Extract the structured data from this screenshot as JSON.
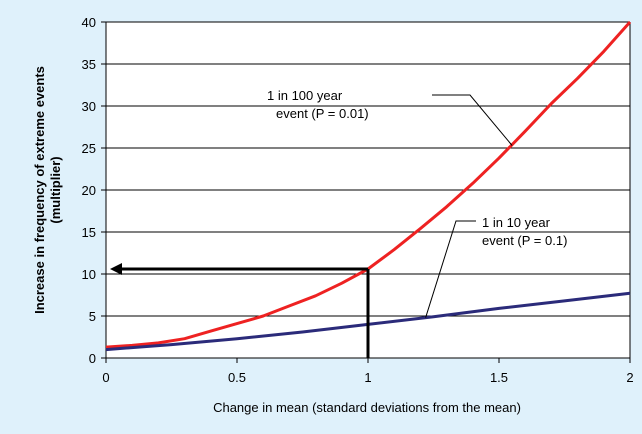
{
  "chart_data": {
    "type": "line",
    "title": "",
    "xlabel": "Change in mean (standard deviations from the mean)",
    "ylabel_lines": [
      "Increase in frequency of extreme events",
      "(multiplier)"
    ],
    "xlim": [
      0,
      2
    ],
    "ylim": [
      0,
      40
    ],
    "x_ticks": [
      "0",
      "0.5",
      "1",
      "1.5",
      "2"
    ],
    "y_ticks": [
      "0",
      "5",
      "10",
      "15",
      "20",
      "25",
      "30",
      "35",
      "40"
    ],
    "grid": "horizontal",
    "series": [
      {
        "name": "1 in 100 year event (P = 0.01)",
        "color": "#ee2222",
        "x": [
          0,
          0.1,
          0.2,
          0.3,
          0.4,
          0.5,
          0.6,
          0.7,
          0.8,
          0.9,
          1.0,
          1.1,
          1.2,
          1.3,
          1.4,
          1.5,
          1.6,
          1.7,
          1.8,
          1.9,
          2.0
        ],
        "y": [
          1.3,
          1.5,
          1.8,
          2.3,
          3.2,
          4.1,
          5.0,
          6.2,
          7.4,
          8.9,
          10.6,
          12.9,
          15.4,
          18.0,
          20.8,
          23.8,
          27.0,
          30.3,
          33.3,
          36.5,
          40.0
        ]
      },
      {
        "name": "1 in 10 year event (P = 0.1)",
        "color": "#2b2b7a",
        "x": [
          0,
          0.25,
          0.5,
          0.75,
          1.0,
          1.25,
          1.5,
          1.75,
          2.0
        ],
        "y": [
          1.0,
          1.6,
          2.3,
          3.1,
          4.0,
          4.9,
          5.9,
          6.8,
          7.7
        ]
      }
    ],
    "annotations": [
      {
        "lines": [
          "1 in 100 year",
          "event (P = 0.01)"
        ]
      },
      {
        "lines": [
          "1 in 10 year",
          "event (P = 0.1)"
        ]
      }
    ],
    "highlight": {
      "x": 1.0,
      "y": 10.6,
      "color": "#000000"
    }
  }
}
